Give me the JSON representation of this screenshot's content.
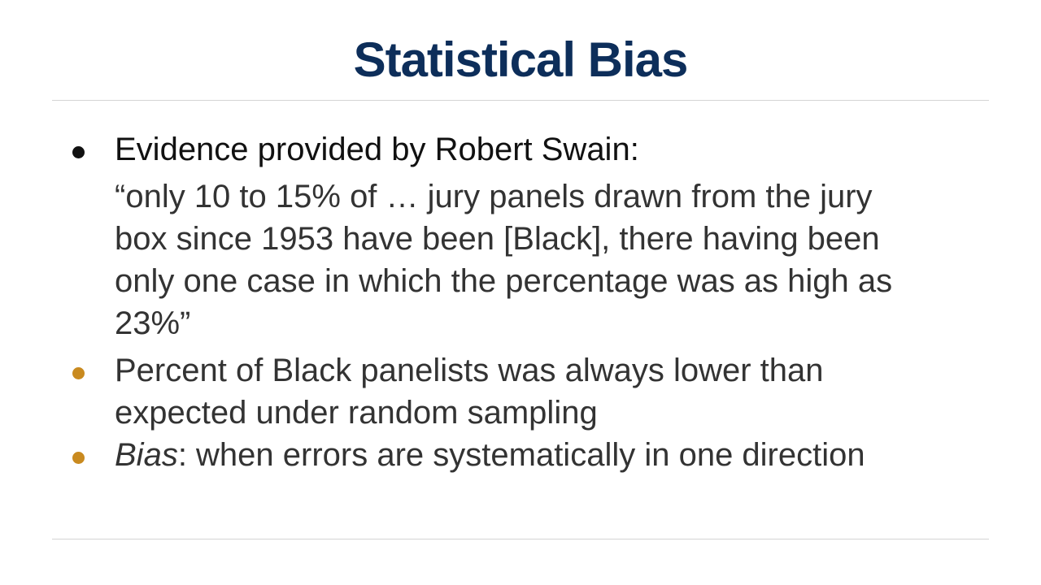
{
  "slide": {
    "title": "Statistical Bias",
    "bullets": [
      {
        "text": "Evidence provided by Robert Swain:",
        "quote": "“only 10 to 15% of … jury panels drawn from the jury box since 1953 have been [Black], there having been only one case in which the percentage was as high as 23%”",
        "bullet_color": "#111111"
      },
      {
        "text": "Percent of Black panelists was always lower than expected under random sampling",
        "bullet_color": "#c98a1f"
      },
      {
        "term": "Bias",
        "text": ": when errors are systematically in one direction",
        "bullet_color": "#c98a1f"
      }
    ]
  },
  "colors": {
    "title": "#0d2e5a",
    "body_text": "#333333",
    "accent_bullet": "#c98a1f",
    "rule": "#d4d4d4"
  }
}
